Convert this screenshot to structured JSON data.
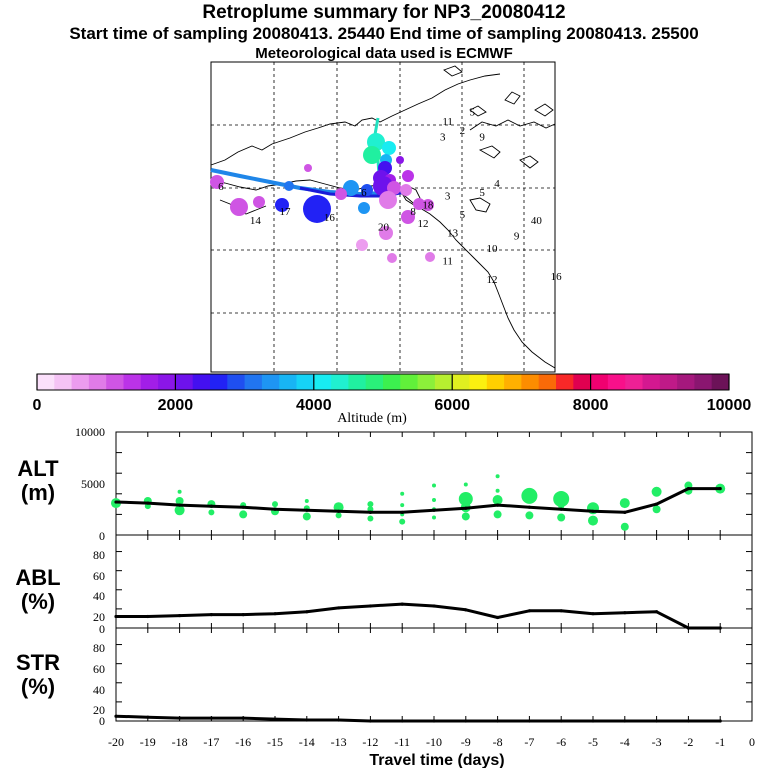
{
  "header": {
    "title": "Retroplume summary for NP3_20080412",
    "subtitle": "Start time of sampling 20080413. 25440     End time of sampling 20080413. 25500",
    "met_line": "Meteorological data used is ECMWF"
  },
  "colorbar": {
    "xlabel": "Altitude (m)",
    "tick_labels": [
      "0",
      "2000",
      "4000",
      "6000",
      "8000",
      "10000"
    ],
    "range": [
      0,
      10000
    ],
    "colors": [
      "#fbe0fb",
      "#f5c3f5",
      "#ec9cef",
      "#e07be8",
      "#cf55e4",
      "#bb33e8",
      "#a21ee8",
      "#8b16e8",
      "#6e12ec",
      "#4410f0",
      "#2222f5",
      "#1f4ff0",
      "#2175f0",
      "#1e95f3",
      "#18b5f4",
      "#16d3f6",
      "#18ecf2",
      "#20f0d0",
      "#20f0a0",
      "#2af07a",
      "#3cf04f",
      "#61f03a",
      "#8cf03a",
      "#b7ef30",
      "#e0ef20",
      "#fbf010",
      "#ffd000",
      "#ffb000",
      "#fd8d00",
      "#fa6a08",
      "#f82828",
      "#e00050",
      "#f00070",
      "#f8108a",
      "#ee2095",
      "#d41890",
      "#bf1a88",
      "#a5187d",
      "#8a1670",
      "#6c1258"
    ]
  },
  "map_labels": [
    {
      "text": "11",
      "lon": 4.8,
      "lat": 1.9
    },
    {
      "text": "5",
      "lon": 5.3,
      "lat": 1.6
    },
    {
      "text": "3",
      "lon": 4.7,
      "lat": 2.4
    },
    {
      "text": "2",
      "lon": 5.1,
      "lat": 2.2
    },
    {
      "text": "9",
      "lon": 5.5,
      "lat": 2.4
    },
    {
      "text": "4",
      "lon": 5.8,
      "lat": 3.9
    },
    {
      "text": "6",
      "lon": 3.1,
      "lat": 4.2
    },
    {
      "text": "6",
      "lon": 0.2,
      "lat": 4.0
    },
    {
      "text": "5",
      "lon": 5.5,
      "lat": 4.2
    },
    {
      "text": "18",
      "lon": 4.4,
      "lat": 4.6
    },
    {
      "text": "3",
      "lon": 4.8,
      "lat": 4.3
    },
    {
      "text": "12",
      "lon": 4.3,
      "lat": 5.2
    },
    {
      "text": "8",
      "lon": 4.1,
      "lat": 4.8
    },
    {
      "text": "17",
      "lon": 1.5,
      "lat": 4.8
    },
    {
      "text": "16",
      "lon": 2.4,
      "lat": 5.0
    },
    {
      "text": "5",
      "lon": 5.1,
      "lat": 4.9
    },
    {
      "text": "14",
      "lon": 0.9,
      "lat": 5.1
    },
    {
      "text": "20",
      "lon": 3.5,
      "lat": 5.3
    },
    {
      "text": "13",
      "lon": 4.9,
      "lat": 5.5
    },
    {
      "text": "9",
      "lon": 6.2,
      "lat": 5.6
    },
    {
      "text": "40",
      "lon": 6.6,
      "lat": 5.1
    },
    {
      "text": "10",
      "lon": 5.7,
      "lat": 6.0
    },
    {
      "text": "11",
      "lon": 4.8,
      "lat": 6.4
    },
    {
      "text": "12",
      "lon": 5.7,
      "lat": 7.0
    },
    {
      "text": "16",
      "lon": 7.0,
      "lat": 6.9
    }
  ],
  "panels": {
    "alt": {
      "label1": "ALT",
      "label2": "(m)",
      "ticks": [
        "10000",
        "5000",
        "0"
      ]
    },
    "abl": {
      "label1": "ABL",
      "label2": "(%)",
      "ticks": [
        "80",
        "60",
        "40",
        "20",
        "0"
      ]
    },
    "str": {
      "label1": "STR",
      "label2": "(%)",
      "ticks": [
        "80",
        "60",
        "40",
        "20",
        "0"
      ]
    }
  },
  "x_axis": {
    "label": "Travel time (days)",
    "tick_labels": [
      "-20",
      "-19",
      "-18",
      "-17",
      "-16",
      "-15",
      "-14",
      "-13",
      "-12",
      "-11",
      "-10",
      "-9",
      "-8",
      "-7",
      "-6",
      "-5",
      "-4",
      "-3",
      "-2",
      "-1",
      "0"
    ]
  },
  "chart_data": [
    {
      "type": "line",
      "name": "ALT",
      "ylabel": "ALT (m)",
      "xlabel": "Travel time (days)",
      "x": [
        -20,
        -19,
        -18,
        -17,
        -16,
        -15,
        -14,
        -13,
        -12,
        -11,
        -10,
        -9,
        -8,
        -7,
        -6,
        -5,
        -4,
        -3,
        -2,
        -1
      ],
      "values": [
        3200,
        3100,
        2900,
        2800,
        2700,
        2500,
        2400,
        2300,
        2200,
        2200,
        2400,
        2600,
        2900,
        2700,
        2500,
        2300,
        2200,
        3000,
        4500,
        4500
      ],
      "ylim": [
        0,
        10000
      ],
      "xlim": [
        -20,
        0
      ],
      "clusters": [
        {
          "x": -20,
          "alt": 3100,
          "size": 5
        },
        {
          "x": -19,
          "alt": 3300,
          "size": 4
        },
        {
          "x": -19,
          "alt": 2800,
          "size": 3
        },
        {
          "x": -18,
          "alt": 4200,
          "size": 2
        },
        {
          "x": -18,
          "alt": 3300,
          "size": 4
        },
        {
          "x": -18,
          "alt": 2400,
          "size": 5
        },
        {
          "x": -17,
          "alt": 3000,
          "size": 4
        },
        {
          "x": -17,
          "alt": 2200,
          "size": 3
        },
        {
          "x": -16,
          "alt": 2900,
          "size": 3
        },
        {
          "x": -16,
          "alt": 2000,
          "size": 4
        },
        {
          "x": -15,
          "alt": 3000,
          "size": 3
        },
        {
          "x": -15,
          "alt": 2300,
          "size": 4
        },
        {
          "x": -14,
          "alt": 3300,
          "size": 2
        },
        {
          "x": -14,
          "alt": 2600,
          "size": 3
        },
        {
          "x": -14,
          "alt": 1800,
          "size": 4
        },
        {
          "x": -13,
          "alt": 2700,
          "size": 5
        },
        {
          "x": -13,
          "alt": 1900,
          "size": 3
        },
        {
          "x": -12,
          "alt": 3000,
          "size": 3
        },
        {
          "x": -12,
          "alt": 2500,
          "size": 3
        },
        {
          "x": -12,
          "alt": 1600,
          "size": 3
        },
        {
          "x": -11,
          "alt": 4000,
          "size": 2
        },
        {
          "x": -11,
          "alt": 2900,
          "size": 2
        },
        {
          "x": -11,
          "alt": 2000,
          "size": 2
        },
        {
          "x": -11,
          "alt": 1300,
          "size": 3
        },
        {
          "x": -10,
          "alt": 4800,
          "size": 2
        },
        {
          "x": -10,
          "alt": 3400,
          "size": 2
        },
        {
          "x": -10,
          "alt": 2500,
          "size": 2
        },
        {
          "x": -10,
          "alt": 1700,
          "size": 2
        },
        {
          "x": -9,
          "alt": 4900,
          "size": 2
        },
        {
          "x": -9,
          "alt": 3500,
          "size": 7
        },
        {
          "x": -9,
          "alt": 2700,
          "size": 5
        },
        {
          "x": -9,
          "alt": 1800,
          "size": 4
        },
        {
          "x": -8,
          "alt": 5700,
          "size": 2
        },
        {
          "x": -8,
          "alt": 4300,
          "size": 2
        },
        {
          "x": -8,
          "alt": 3400,
          "size": 5
        },
        {
          "x": -8,
          "alt": 2000,
          "size": 4
        },
        {
          "x": -7,
          "alt": 3800,
          "size": 8
        },
        {
          "x": -7,
          "alt": 1900,
          "size": 4
        },
        {
          "x": -6,
          "alt": 3500,
          "size": 8
        },
        {
          "x": -6,
          "alt": 2800,
          "size": 3
        },
        {
          "x": -6,
          "alt": 1700,
          "size": 4
        },
        {
          "x": -5,
          "alt": 2600,
          "size": 6
        },
        {
          "x": -5,
          "alt": 1400,
          "size": 5
        },
        {
          "x": -4,
          "alt": 3100,
          "size": 5
        },
        {
          "x": -4,
          "alt": 800,
          "size": 4
        },
        {
          "x": -3,
          "alt": 4200,
          "size": 5
        },
        {
          "x": -3,
          "alt": 2500,
          "size": 4
        },
        {
          "x": -2,
          "alt": 4800,
          "size": 4
        },
        {
          "x": -2,
          "alt": 4300,
          "size": 4
        },
        {
          "x": -1,
          "alt": 4500,
          "size": 5
        }
      ]
    },
    {
      "type": "line",
      "name": "ABL",
      "ylabel": "ABL (%)",
      "xlabel": "Travel time (days)",
      "x": [
        -20,
        -19,
        -18,
        -17,
        -16,
        -15,
        -14,
        -13,
        -12,
        -11,
        -10,
        -9,
        -8,
        -7,
        -6,
        -5,
        -4,
        -3,
        -2,
        -1
      ],
      "values": [
        12,
        12,
        13,
        14,
        14,
        15,
        17,
        21,
        23,
        25,
        23,
        19,
        11,
        18,
        18,
        15,
        16,
        17,
        0,
        0
      ],
      "ylim": [
        0,
        90
      ],
      "xlim": [
        -20,
        0
      ]
    },
    {
      "type": "line",
      "name": "STR",
      "ylabel": "STR (%)",
      "xlabel": "Travel time (days)",
      "x": [
        -20,
        -19,
        -18,
        -17,
        -16,
        -15,
        -14,
        -13,
        -12,
        -11,
        -10,
        -9,
        -8,
        -7,
        -6,
        -5,
        -4,
        -3,
        -2,
        -1
      ],
      "values": [
        5,
        4,
        3,
        3,
        3,
        2,
        1,
        1,
        0,
        0,
        0,
        0,
        0,
        0,
        0,
        0,
        0,
        0,
        0,
        0
      ],
      "ylim": [
        0,
        90
      ],
      "xlim": [
        -20,
        0
      ]
    }
  ]
}
